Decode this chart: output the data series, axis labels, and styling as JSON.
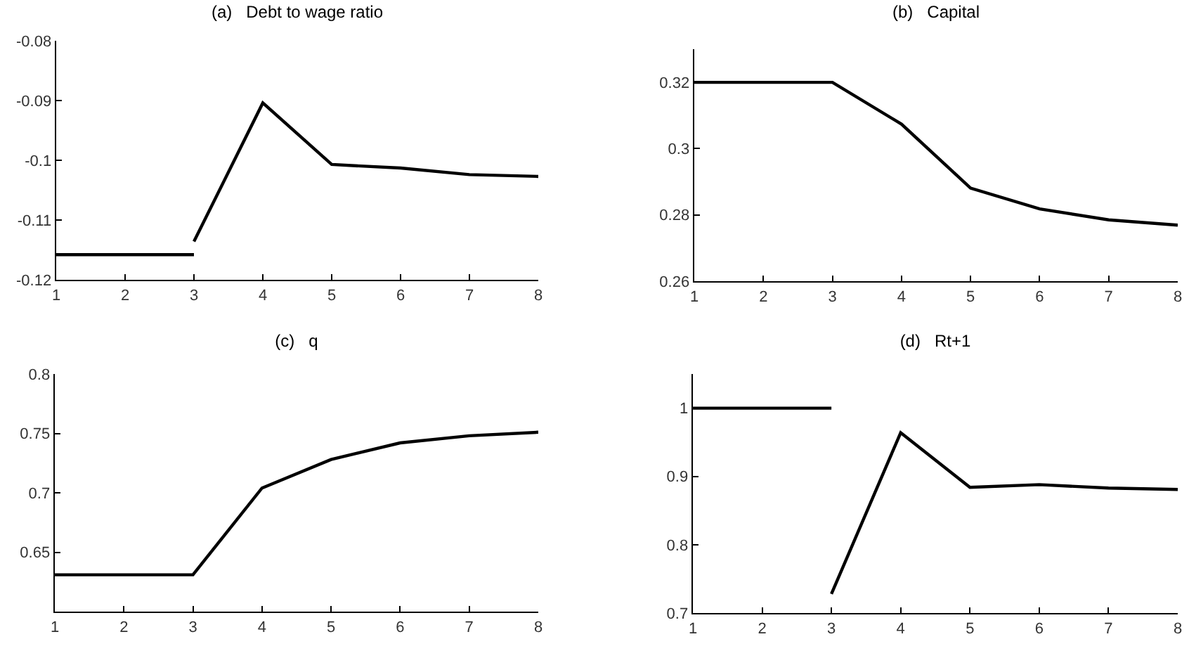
{
  "chart_data": [
    {
      "type": "line",
      "title": "(a)   Debt to wage ratio",
      "xlim": [
        1,
        8
      ],
      "xticks": [
        1,
        2,
        3,
        4,
        5,
        6,
        7,
        8
      ],
      "ylim": [
        -0.12,
        -0.08
      ],
      "yticks": [
        -0.12,
        -0.11,
        -0.1,
        -0.09,
        -0.08
      ],
      "grid": false,
      "series": [
        {
          "color": "#000000",
          "x": [
            1,
            2,
            3
          ],
          "values": [
            -0.1158,
            -0.1158,
            -0.1158
          ]
        },
        {
          "color": "#000000",
          "x": [
            3,
            4,
            5,
            6,
            7,
            8
          ],
          "values": [
            -0.1136,
            -0.0904,
            -0.1007,
            -0.1013,
            -0.1024,
            -0.1027
          ]
        }
      ]
    },
    {
      "type": "line",
      "title": "(b)   Capital",
      "xlim": [
        1,
        8
      ],
      "xticks": [
        1,
        2,
        3,
        4,
        5,
        6,
        7,
        8
      ],
      "ylim": [
        0.26,
        0.33
      ],
      "yticks": [
        0.26,
        0.28,
        0.3,
        0.32
      ],
      "grid": false,
      "series": [
        {
          "color": "#000000",
          "x": [
            1,
            2,
            3,
            4,
            5,
            6,
            7,
            8
          ],
          "values": [
            0.32,
            0.32,
            0.32,
            0.3074,
            0.2881,
            0.2818,
            0.2785,
            0.2769
          ]
        }
      ]
    },
    {
      "type": "line",
      "title": "(c)   q",
      "xlim": [
        1,
        8
      ],
      "xticks": [
        1,
        2,
        3,
        4,
        5,
        6,
        7,
        8
      ],
      "ylim": [
        0.6,
        0.8
      ],
      "yticks": [
        0.65,
        0.7,
        0.75,
        0.8
      ],
      "grid": false,
      "series": [
        {
          "color": "#000000",
          "x": [
            1,
            2,
            3,
            4,
            5,
            6,
            7,
            8
          ],
          "values": [
            0.631,
            0.631,
            0.631,
            0.704,
            0.728,
            0.742,
            0.748,
            0.751
          ]
        }
      ]
    },
    {
      "type": "line",
      "title": "(d)   Rt+1",
      "xlim": [
        1,
        8
      ],
      "xticks": [
        1,
        2,
        3,
        4,
        5,
        6,
        7,
        8
      ],
      "ylim": [
        0.7,
        1.05
      ],
      "yticks": [
        0.7,
        0.8,
        0.9,
        1
      ],
      "grid": false,
      "series": [
        {
          "color": "#000000",
          "x": [
            1,
            2,
            3
          ],
          "values": [
            1,
            1,
            1
          ]
        },
        {
          "color": "#000000",
          "x": [
            3,
            4,
            5,
            6,
            7,
            8
          ],
          "values": [
            0.728,
            0.964,
            0.884,
            0.888,
            0.883,
            0.881
          ]
        }
      ]
    }
  ]
}
